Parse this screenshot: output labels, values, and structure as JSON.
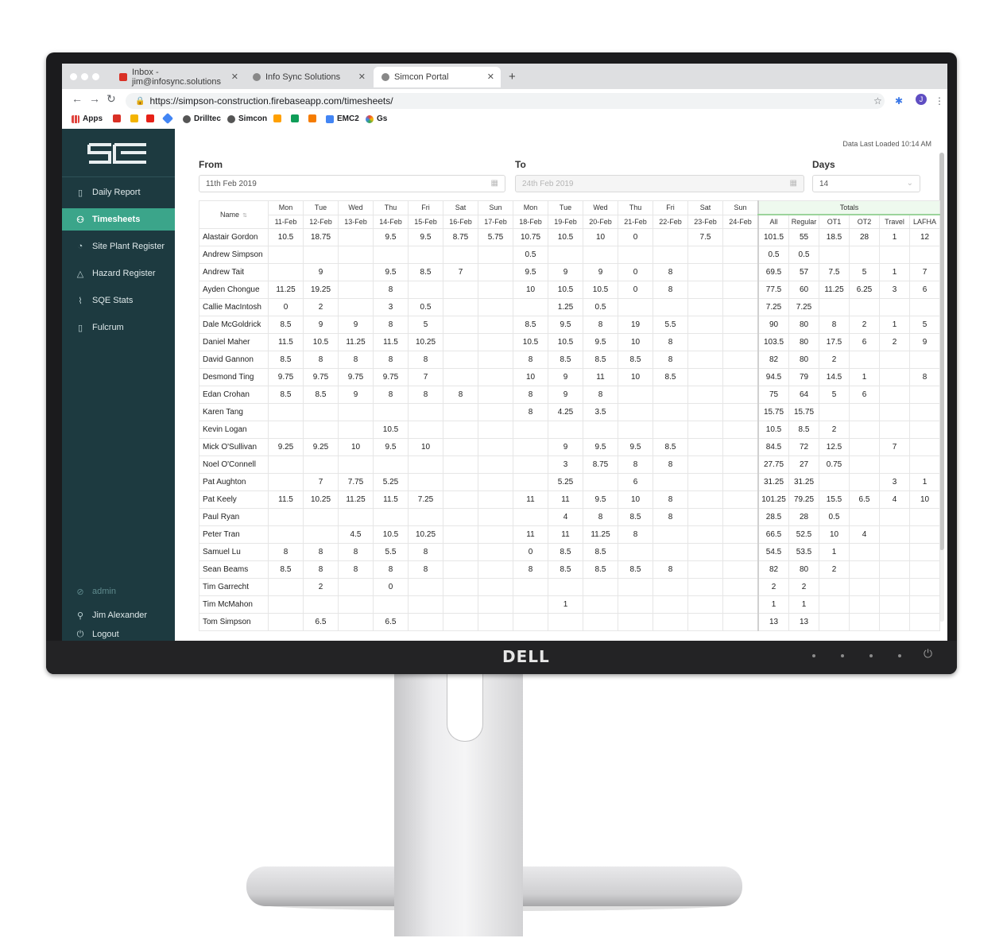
{
  "browser": {
    "tabs": [
      {
        "label": "Inbox - jim@infosync.solutions",
        "active": false
      },
      {
        "label": "Info Sync Solutions",
        "active": false
      },
      {
        "label": "Simcon Portal",
        "active": true
      }
    ],
    "url": "https://simpson-construction.firebaseapp.com/timesheets/",
    "bookmarks": [
      "Apps",
      "Drilltec",
      "Simcon",
      "EMC2",
      "Gs"
    ]
  },
  "sidebar": {
    "items": [
      {
        "label": "Daily Report",
        "icon": "document-icon",
        "active": false
      },
      {
        "label": "Timesheets",
        "icon": "people-icon",
        "active": true
      },
      {
        "label": "Site Plant Register",
        "icon": "gauge-icon",
        "active": false
      },
      {
        "label": "Hazard Register",
        "icon": "warning-icon",
        "active": false
      },
      {
        "label": "SQE Stats",
        "icon": "chart-icon",
        "active": false
      },
      {
        "label": "Fulcrum",
        "icon": "mobile-icon",
        "active": false
      }
    ],
    "role": "admin",
    "user": "Jim Alexander",
    "logout": "Logout"
  },
  "filters": {
    "from_label": "From",
    "from_value": "11th Feb 2019",
    "to_label": "To",
    "to_value": "24th Feb 2019",
    "days_label": "Days",
    "days_value": "14",
    "data_loaded": "Data Last Loaded 10:14 AM"
  },
  "table": {
    "name_header": "Name",
    "days": [
      {
        "dow": "Mon",
        "date": "11-Feb"
      },
      {
        "dow": "Tue",
        "date": "12-Feb"
      },
      {
        "dow": "Wed",
        "date": "13-Feb"
      },
      {
        "dow": "Thu",
        "date": "14-Feb"
      },
      {
        "dow": "Fri",
        "date": "15-Feb"
      },
      {
        "dow": "Sat",
        "date": "16-Feb"
      },
      {
        "dow": "Sun",
        "date": "17-Feb"
      },
      {
        "dow": "Mon",
        "date": "18-Feb"
      },
      {
        "dow": "Tue",
        "date": "19-Feb"
      },
      {
        "dow": "Wed",
        "date": "20-Feb"
      },
      {
        "dow": "Thu",
        "date": "21-Feb"
      },
      {
        "dow": "Fri",
        "date": "22-Feb"
      },
      {
        "dow": "Sat",
        "date": "23-Feb"
      },
      {
        "dow": "Sun",
        "date": "24-Feb"
      }
    ],
    "totals_header": "Totals",
    "totals_cols": [
      "All",
      "Regular",
      "OT1",
      "OT2",
      "Travel",
      "LAFHA"
    ],
    "rows": [
      {
        "name": "Alastair Gordon",
        "days": [
          "10.5",
          "18.75",
          "",
          "9.5",
          "9.5",
          "8.75",
          "5.75",
          "10.75",
          "10.5",
          "10",
          "0",
          "",
          "7.5",
          ""
        ],
        "totals": [
          "101.5",
          "55",
          "18.5",
          "28",
          "1",
          "12"
        ]
      },
      {
        "name": "Andrew Simpson",
        "days": [
          "",
          "",
          "",
          "",
          "",
          "",
          "",
          "0.5",
          "",
          "",
          "",
          "",
          "",
          ""
        ],
        "totals": [
          "0.5",
          "0.5",
          "",
          "",
          "",
          ""
        ]
      },
      {
        "name": "Andrew Tait",
        "days": [
          "",
          "9",
          "",
          "9.5",
          "8.5",
          "7",
          "",
          "9.5",
          "9",
          "9",
          "0",
          "8",
          "",
          ""
        ],
        "totals": [
          "69.5",
          "57",
          "7.5",
          "5",
          "1",
          "7"
        ]
      },
      {
        "name": "Ayden Chongue",
        "days": [
          "11.25",
          "19.25",
          "",
          "8",
          "",
          "",
          "",
          "10",
          "10.5",
          "10.5",
          "0",
          "8",
          "",
          ""
        ],
        "totals": [
          "77.5",
          "60",
          "11.25",
          "6.25",
          "3",
          "6"
        ]
      },
      {
        "name": "Callie MacIntosh",
        "days": [
          "0",
          "2",
          "",
          "3",
          "0.5",
          "",
          "",
          "",
          "1.25",
          "0.5",
          "",
          "",
          "",
          ""
        ],
        "totals": [
          "7.25",
          "7.25",
          "",
          "",
          "",
          ""
        ]
      },
      {
        "name": "Dale McGoldrick",
        "days": [
          "8.5",
          "9",
          "9",
          "8",
          "5",
          "",
          "",
          "8.5",
          "9.5",
          "8",
          "19",
          "5.5",
          "",
          ""
        ],
        "totals": [
          "90",
          "80",
          "8",
          "2",
          "1",
          "5"
        ]
      },
      {
        "name": "Daniel Maher",
        "days": [
          "11.5",
          "10.5",
          "11.25",
          "11.5",
          "10.25",
          "",
          "",
          "10.5",
          "10.5",
          "9.5",
          "10",
          "8",
          "",
          ""
        ],
        "totals": [
          "103.5",
          "80",
          "17.5",
          "6",
          "2",
          "9"
        ]
      },
      {
        "name": "David Gannon",
        "days": [
          "8.5",
          "8",
          "8",
          "8",
          "8",
          "",
          "",
          "8",
          "8.5",
          "8.5",
          "8.5",
          "8",
          "",
          ""
        ],
        "totals": [
          "82",
          "80",
          "2",
          "",
          "",
          ""
        ]
      },
      {
        "name": "Desmond Ting",
        "days": [
          "9.75",
          "9.75",
          "9.75",
          "9.75",
          "7",
          "",
          "",
          "10",
          "9",
          "11",
          "10",
          "8.5",
          "",
          ""
        ],
        "totals": [
          "94.5",
          "79",
          "14.5",
          "1",
          "",
          "8"
        ]
      },
      {
        "name": "Edan Crohan",
        "days": [
          "8.5",
          "8.5",
          "9",
          "8",
          "8",
          "8",
          "",
          "8",
          "9",
          "8",
          "",
          "",
          "",
          ""
        ],
        "totals": [
          "75",
          "64",
          "5",
          "6",
          "",
          ""
        ]
      },
      {
        "name": "Karen Tang",
        "days": [
          "",
          "",
          "",
          "",
          "",
          "",
          "",
          "8",
          "4.25",
          "3.5",
          "",
          "",
          "",
          ""
        ],
        "totals": [
          "15.75",
          "15.75",
          "",
          "",
          "",
          ""
        ]
      },
      {
        "name": "Kevin Logan",
        "days": [
          "",
          "",
          "",
          "10.5",
          "",
          "",
          "",
          "",
          "",
          "",
          "",
          "",
          "",
          ""
        ],
        "totals": [
          "10.5",
          "8.5",
          "2",
          "",
          "",
          ""
        ]
      },
      {
        "name": "Mick O'Sullivan",
        "days": [
          "9.25",
          "9.25",
          "10",
          "9.5",
          "10",
          "",
          "",
          "",
          "9",
          "9.5",
          "9.5",
          "8.5",
          "",
          ""
        ],
        "totals": [
          "84.5",
          "72",
          "12.5",
          "",
          "7",
          ""
        ]
      },
      {
        "name": "Noel O'Connell",
        "days": [
          "",
          "",
          "",
          "",
          "",
          "",
          "",
          "",
          "3",
          "8.75",
          "8",
          "8",
          "",
          ""
        ],
        "totals": [
          "27.75",
          "27",
          "0.75",
          "",
          "",
          ""
        ]
      },
      {
        "name": "Pat Aughton",
        "days": [
          "",
          "7",
          "7.75",
          "5.25",
          "",
          "",
          "",
          "",
          "5.25",
          "",
          "6",
          "",
          "",
          ""
        ],
        "totals": [
          "31.25",
          "31.25",
          "",
          "",
          "3",
          "1"
        ]
      },
      {
        "name": "Pat Keely",
        "days": [
          "11.5",
          "10.25",
          "11.25",
          "11.5",
          "7.25",
          "",
          "",
          "11",
          "11",
          "9.5",
          "10",
          "8",
          "",
          ""
        ],
        "totals": [
          "101.25",
          "79.25",
          "15.5",
          "6.5",
          "4",
          "10"
        ]
      },
      {
        "name": "Paul Ryan",
        "days": [
          "",
          "",
          "",
          "",
          "",
          "",
          "",
          "",
          "4",
          "8",
          "8.5",
          "8",
          "",
          ""
        ],
        "totals": [
          "28.5",
          "28",
          "0.5",
          "",
          "",
          ""
        ]
      },
      {
        "name": "Peter Tran",
        "days": [
          "",
          "",
          "4.5",
          "10.5",
          "10.25",
          "",
          "",
          "11",
          "11",
          "11.25",
          "8",
          "",
          "",
          ""
        ],
        "totals": [
          "66.5",
          "52.5",
          "10",
          "4",
          "",
          ""
        ]
      },
      {
        "name": "Samuel Lu",
        "days": [
          "8",
          "8",
          "8",
          "5.5",
          "8",
          "",
          "",
          "0",
          "8.5",
          "8.5",
          "",
          "",
          "",
          ""
        ],
        "totals": [
          "54.5",
          "53.5",
          "1",
          "",
          "",
          ""
        ]
      },
      {
        "name": "Sean Beams",
        "days": [
          "8.5",
          "8",
          "8",
          "8",
          "8",
          "",
          "",
          "8",
          "8.5",
          "8.5",
          "8.5",
          "8",
          "",
          ""
        ],
        "totals": [
          "82",
          "80",
          "2",
          "",
          "",
          ""
        ]
      },
      {
        "name": "Tim Garrecht",
        "days": [
          "",
          "2",
          "",
          "0",
          "",
          "",
          "",
          "",
          "",
          "",
          "",
          "",
          "",
          ""
        ],
        "totals": [
          "2",
          "2",
          "",
          "",
          "",
          ""
        ]
      },
      {
        "name": "Tim McMahon",
        "days": [
          "",
          "",
          "",
          "",
          "",
          "",
          "",
          "",
          "1",
          "",
          "",
          "",
          "",
          ""
        ],
        "totals": [
          "1",
          "1",
          "",
          "",
          "",
          ""
        ]
      },
      {
        "name": "Tom Simpson",
        "days": [
          "",
          "6.5",
          "",
          "6.5",
          "",
          "",
          "",
          "",
          "",
          "",
          "",
          "",
          "",
          ""
        ],
        "totals": [
          "13",
          "13",
          "",
          "",
          "",
          ""
        ]
      }
    ]
  },
  "monitor": {
    "brand": "DELL"
  },
  "colors": {
    "sidebar": "#1d3a40",
    "accent": "#3ba58a"
  }
}
